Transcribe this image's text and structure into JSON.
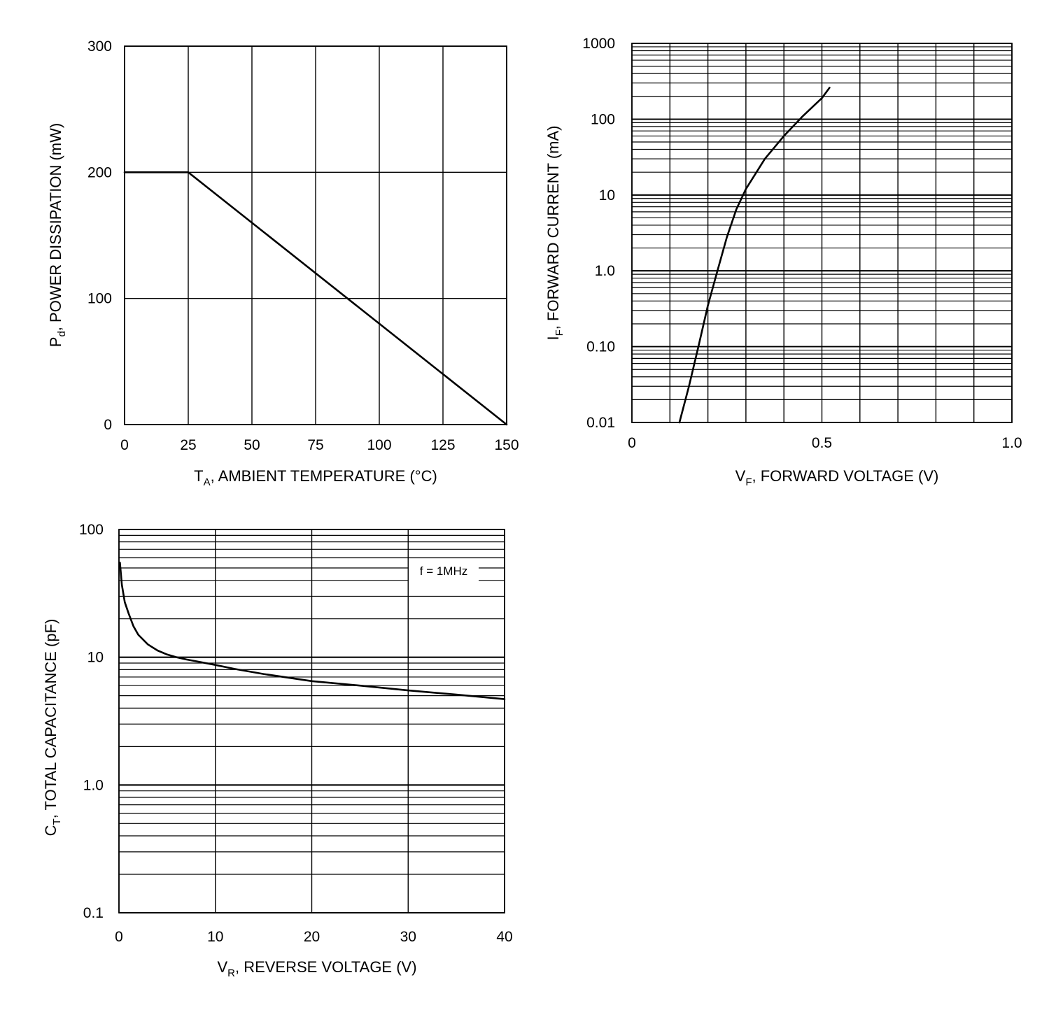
{
  "chart_data": [
    {
      "type": "line",
      "id": "power",
      "xlabel": {
        "main": "T",
        "sub": "A",
        "rest": ", AMBIENT TEMPERATURE (°C)"
      },
      "ylabel": {
        "main": "P",
        "sub": "d",
        "rest": ", POWER DISSIPATION (mW)"
      },
      "xlim": [
        0,
        150
      ],
      "ylim": [
        0,
        300
      ],
      "x_ticks": [
        0,
        25,
        50,
        75,
        100,
        125,
        150
      ],
      "x_tick_labels": [
        "0",
        "25",
        "50",
        "75",
        "100",
        "125",
        "150"
      ],
      "y_ticks": [
        0,
        100,
        200,
        300
      ],
      "y_tick_labels": [
        "0",
        "100",
        "200",
        "300"
      ],
      "series": [
        {
          "name": "Pd",
          "x": [
            0,
            25,
            150
          ],
          "y": [
            200,
            200,
            0
          ]
        }
      ]
    },
    {
      "type": "line",
      "id": "forward",
      "yscale": "log",
      "xlabel": {
        "main": "V",
        "sub": "F",
        "rest": ", FORWARD VOLTAGE (V)"
      },
      "ylabel": {
        "main": "I",
        "sub": "F",
        "rest": ", FORWARD CURRENT (mA)"
      },
      "xlim": [
        0,
        1.0
      ],
      "ylim": [
        0.01,
        1000
      ],
      "x_ticks": [
        0,
        0.5,
        1.0
      ],
      "x_tick_labels": [
        "0",
        "0.5",
        "1.0"
      ],
      "y_ticks": [
        0.01,
        0.1,
        1,
        10,
        100,
        1000
      ],
      "y_tick_labels": [
        "0.01",
        "0.10",
        "1.0",
        "10",
        "100",
        "1000"
      ],
      "series": [
        {
          "name": "IF",
          "x": [
            0.125,
            0.15,
            0.175,
            0.2,
            0.225,
            0.25,
            0.275,
            0.3,
            0.35,
            0.4,
            0.45,
            0.5,
            0.52
          ],
          "y": [
            0.01,
            0.03,
            0.1,
            0.35,
            1.0,
            2.8,
            6.5,
            12,
            30,
            60,
            110,
            190,
            260
          ]
        }
      ]
    },
    {
      "type": "line",
      "id": "capacitance",
      "yscale": "log",
      "xlabel": {
        "main": "V",
        "sub": "R",
        "rest": ", REVERSE VOLTAGE (V)"
      },
      "ylabel": {
        "main": "C",
        "sub": "T",
        "rest": ", TOTAL CAPACITANCE (pF)"
      },
      "xlim": [
        0,
        40
      ],
      "ylim": [
        0.1,
        100
      ],
      "x_ticks": [
        0,
        10,
        20,
        30,
        40
      ],
      "x_tick_labels": [
        "0",
        "10",
        "20",
        "30",
        "40"
      ],
      "y_ticks": [
        0.1,
        1,
        10,
        100
      ],
      "y_tick_labels": [
        "0.1",
        "1.0",
        "10",
        "100"
      ],
      "annotation": "f = 1MHz",
      "series": [
        {
          "name": "CT",
          "x": [
            0.1,
            0.3,
            0.6,
            1,
            1.5,
            2,
            3,
            4,
            5,
            6,
            7,
            8,
            10,
            12,
            15,
            20,
            25,
            30,
            35,
            40
          ],
          "y": [
            55,
            37,
            27,
            22,
            17.5,
            15,
            12.6,
            11.3,
            10.5,
            10.0,
            9.6,
            9.3,
            8.7,
            8.1,
            7.4,
            6.5,
            6.0,
            5.5,
            5.1,
            4.7
          ]
        }
      ]
    }
  ]
}
